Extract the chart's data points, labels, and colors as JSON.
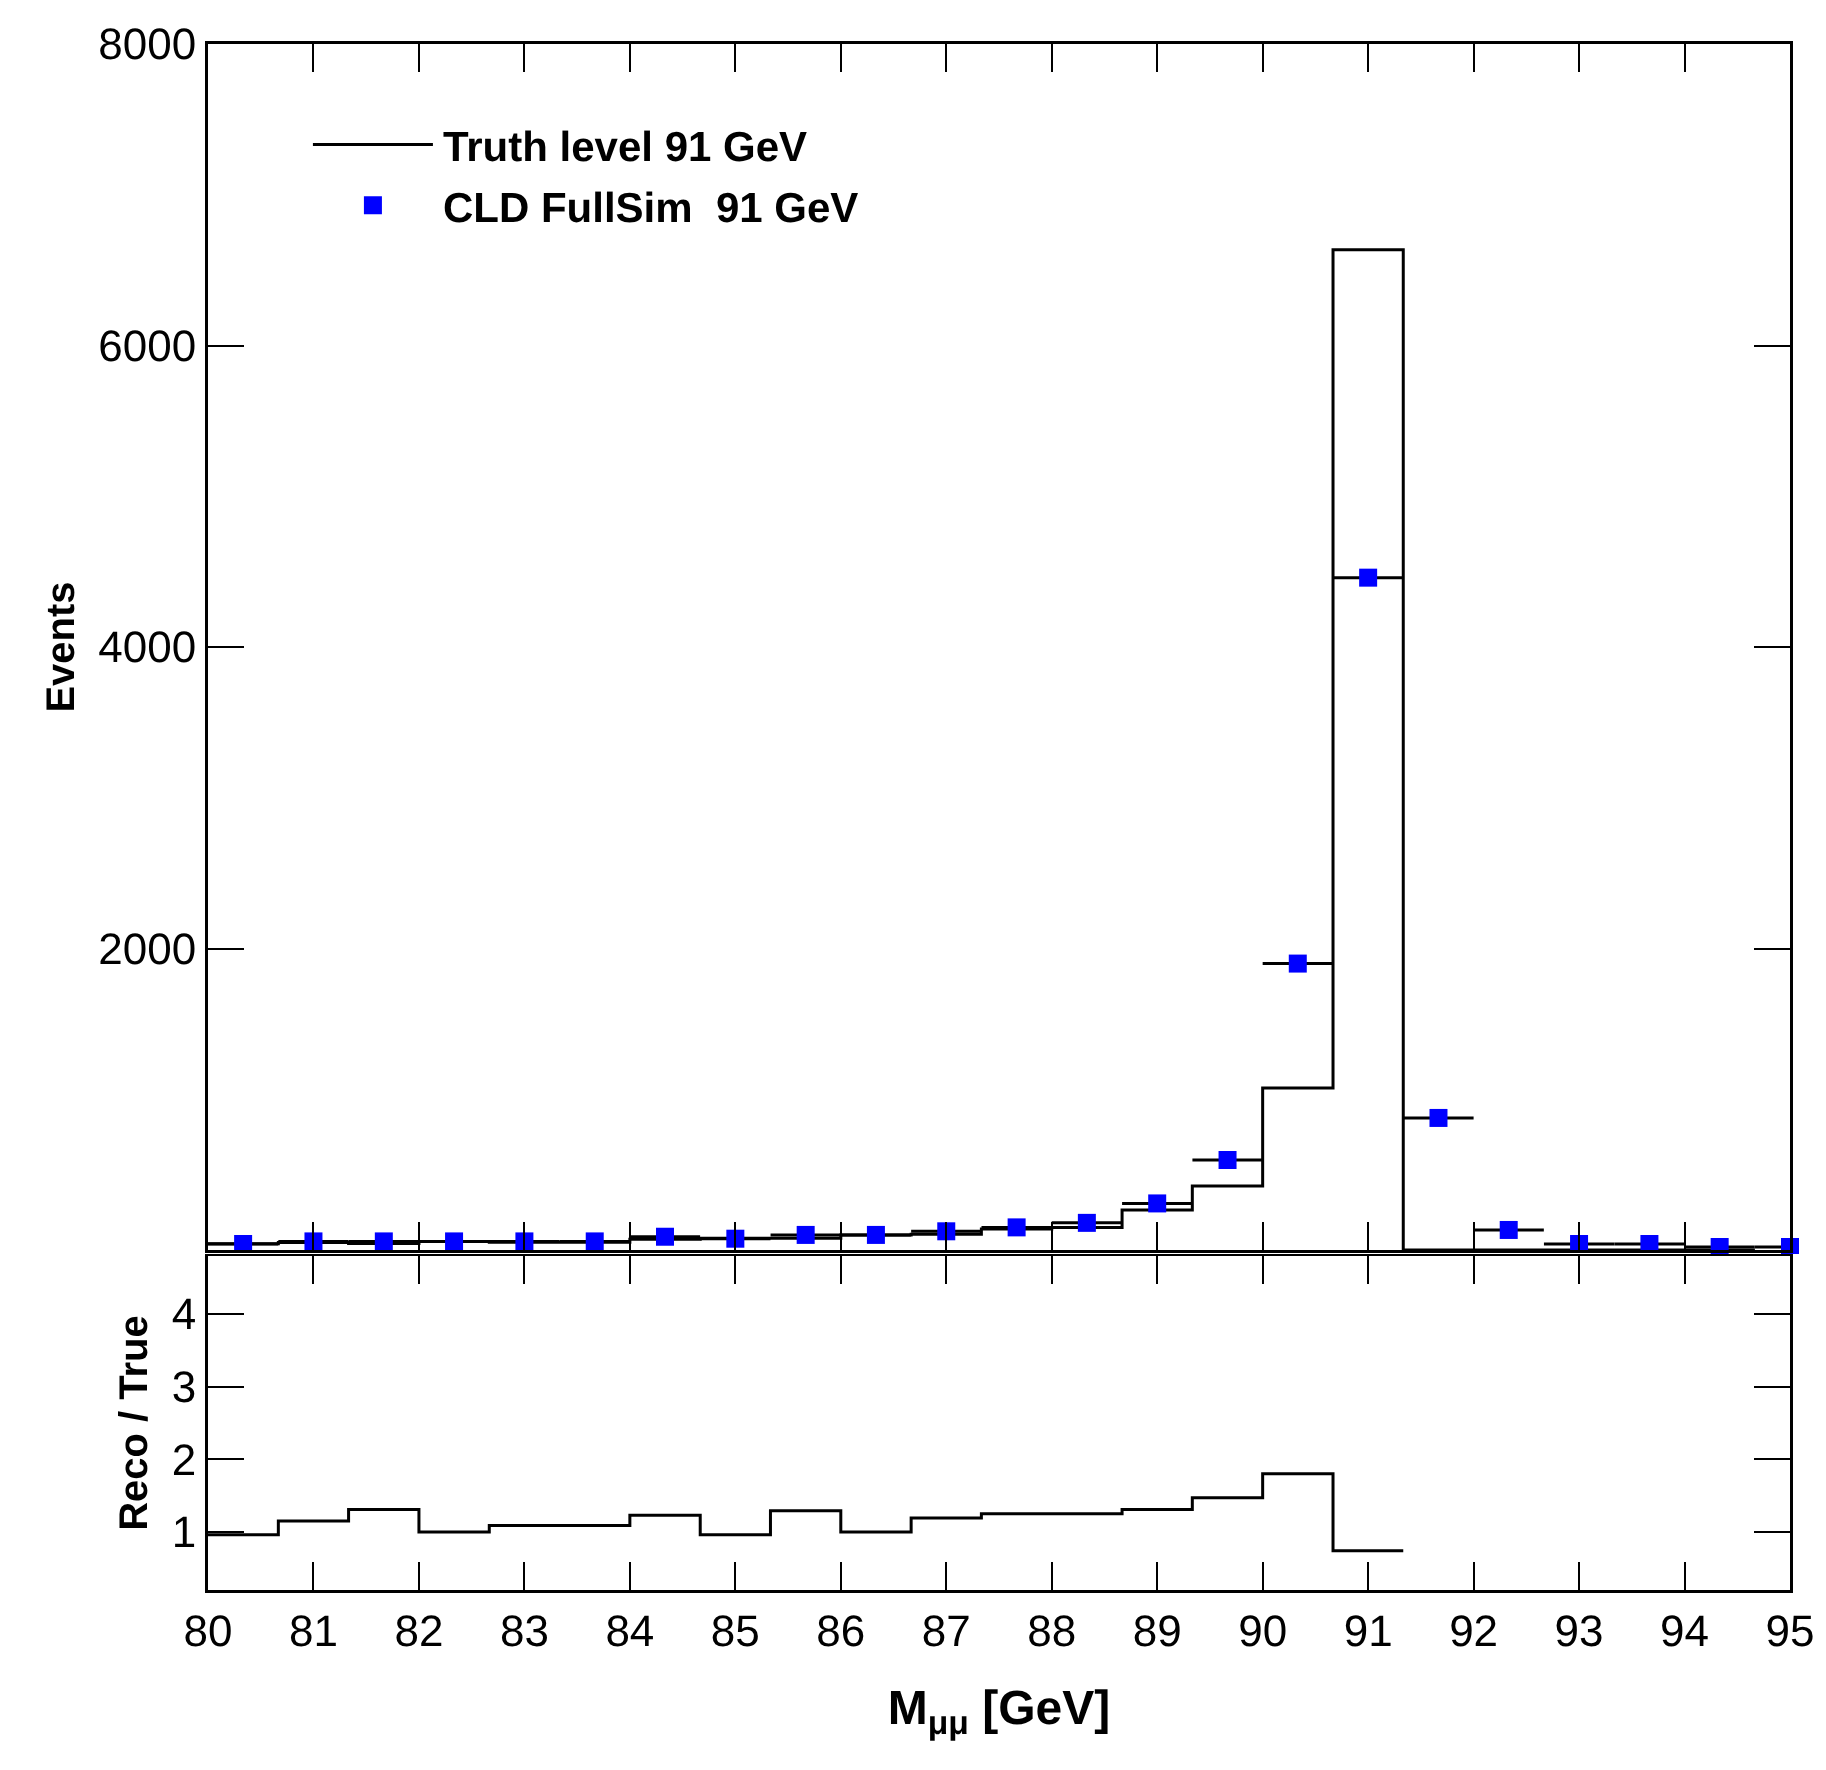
{
  "chart_data": [
    {
      "type": "histogram",
      "ylabel": "Events",
      "legend": "top left",
      "grid": false,
      "tick_labels": "y",
      "bins": [
        80,
        80.667,
        81.333,
        82,
        82.667,
        83.333,
        84,
        84.667,
        85.333,
        86,
        86.667,
        87.333,
        88,
        88.667,
        89.333,
        90,
        90.667,
        91.333,
        92,
        92.667,
        93.333,
        94,
        94.667
      ],
      "xlim": [
        80,
        95
      ],
      "xticks": [
        80,
        81,
        82,
        83,
        84,
        85,
        86,
        87,
        88,
        89,
        90,
        91,
        92,
        93,
        94,
        95
      ],
      "ylim": [
        0,
        8000
      ],
      "yticks": [
        {
          "value": 0,
          "label": null
        },
        2000,
        4000,
        6000,
        8000
      ],
      "series": [
        {
          "name": "Truth level 91 GeV",
          "color": "#000000",
          "values": [
            42,
            50,
            43,
            57,
            52,
            52,
            72,
            78,
            78,
            100,
            105,
            140,
            150,
            265,
            425,
            1075,
            6635,
            0,
            0,
            0,
            0,
            0
          ]
        },
        {
          "type": "scatter",
          "name": "CLD FullSim  91 GeV",
          "color": "#0000ff",
          "marker": "square",
          "x": [
            80.333,
            81,
            81.667,
            82.333,
            83,
            83.667,
            84.333,
            85,
            85.667,
            86.333,
            87,
            87.667,
            88.333,
            89,
            89.667,
            90.333,
            91,
            91.667,
            92.333,
            93,
            93.667,
            94.333,
            95
          ],
          "values": [
            40,
            57,
            57,
            57,
            57,
            57,
            88,
            75,
            100,
            100,
            124,
            150,
            180,
            309,
            597,
            1900,
            4460,
            876,
            133,
            40,
            40,
            20,
            20
          ],
          "xerrors": [
            0.333,
            0.333,
            0.333,
            0.333,
            0.333,
            0.333,
            0.333,
            0.333,
            0.333,
            0.333,
            0.333,
            0.333,
            0.333,
            0.333,
            0.333,
            0.333,
            0.333,
            0.333,
            0.333,
            0.333,
            0.333,
            0.333,
            0.333
          ]
        }
      ]
    },
    {
      "type": "histogram",
      "xlabel": "M$_{μμ}$ [GeV]",
      "ylabel": "Reco / True",
      "grid": false,
      "bins": [
        80,
        80.667,
        81.333,
        82,
        82.667,
        83.333,
        84,
        84.667,
        85.333,
        86,
        86.667,
        87.333,
        88,
        88.667,
        89.333,
        90,
        90.667,
        91.333
      ],
      "values": [
        0.96,
        1.15,
        1.31,
        1.0,
        1.09,
        1.09,
        1.23,
        0.96,
        1.29,
        1.0,
        1.19,
        1.25,
        1.25,
        1.31,
        1.47,
        1.8,
        0.74
      ],
      "color": "#000000",
      "xlim": [
        80,
        95
      ],
      "xticks": [
        80,
        81,
        82,
        83,
        84,
        85,
        86,
        87,
        88,
        89,
        90,
        91,
        92,
        93,
        94,
        95
      ],
      "ylim": [
        0.2,
        4.8
      ],
      "yticks": [
        1,
        2,
        3,
        4
      ]
    }
  ]
}
